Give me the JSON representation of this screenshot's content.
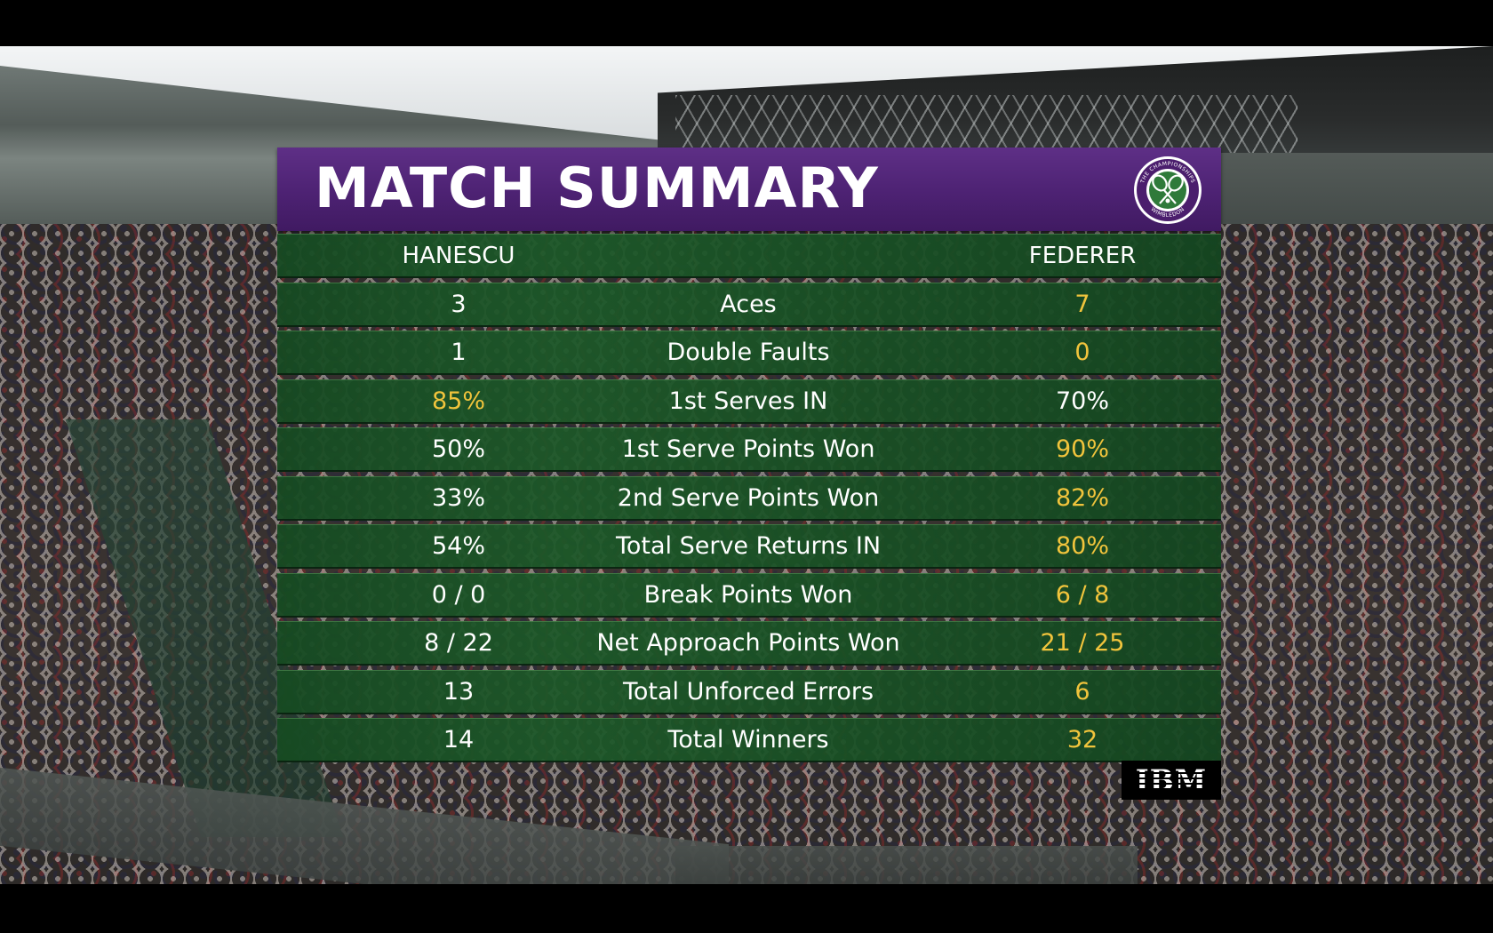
{
  "title": "MATCH SUMMARY",
  "logo": {
    "icon": "wimbledon-crossed-rackets-icon",
    "text": "THE CHAMPIONSHIPS WIMBLEDON",
    "colors": {
      "ring": "#4b1e6d",
      "inner": "#2f7a3a",
      "accent": "#ffffff"
    }
  },
  "players": {
    "left": "HANESCU",
    "right": "FEDERER"
  },
  "stats": [
    {
      "label": "Aces",
      "left": "3",
      "right": "7",
      "left_highlight": false,
      "right_highlight": true
    },
    {
      "label": "Double Faults",
      "left": "1",
      "right": "0",
      "left_highlight": false,
      "right_highlight": true
    },
    {
      "label": "1st Serves IN",
      "left": "85%",
      "right": "70%",
      "left_highlight": true,
      "right_highlight": false
    },
    {
      "label": "1st Serve Points Won",
      "left": "50%",
      "right": "90%",
      "left_highlight": false,
      "right_highlight": true
    },
    {
      "label": "2nd Serve Points Won",
      "left": "33%",
      "right": "82%",
      "left_highlight": false,
      "right_highlight": true
    },
    {
      "label": "Total Serve Returns IN",
      "left": "54%",
      "right": "80%",
      "left_highlight": false,
      "right_highlight": true
    },
    {
      "label": "Break Points Won",
      "left": "0 / 0",
      "right": "6 / 8",
      "left_highlight": false,
      "right_highlight": true
    },
    {
      "label": "Net Approach Points Won",
      "left": "8 / 22",
      "right": "21 / 25",
      "left_highlight": false,
      "right_highlight": true
    },
    {
      "label": "Total Unforced Errors",
      "left": "13",
      "right": "6",
      "left_highlight": false,
      "right_highlight": true
    },
    {
      "label": "Total Winners",
      "left": "14",
      "right": "32",
      "left_highlight": false,
      "right_highlight": true
    }
  ],
  "sponsor": "IBM",
  "colors": {
    "title_bar": "#4d2273",
    "row_green": "#1c5828",
    "highlight": "#f1c43c",
    "text": "#ffffff"
  }
}
